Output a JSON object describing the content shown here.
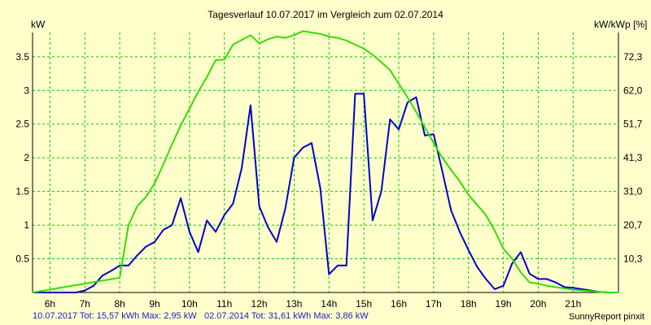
{
  "chart_data": {
    "type": "line",
    "title": "Tagesverlauf 10.07.2017 im Vergleich zum 02.07.2014",
    "ylabel_left": "kW",
    "ylabel_right": "kW/kWp [%]",
    "x_ticks": [
      "6h",
      "7h",
      "8h",
      "9h",
      "10h",
      "11h",
      "12h",
      "13h",
      "14h",
      "15h",
      "16h",
      "17h",
      "18h",
      "19h",
      "20h",
      "21h"
    ],
    "x_tick_values": [
      6,
      7,
      8,
      9,
      10,
      11,
      12,
      13,
      14,
      15,
      16,
      17,
      18,
      19,
      20,
      21
    ],
    "xlim": [
      5.5,
      22.3
    ],
    "ylim": [
      0,
      3.86
    ],
    "y_ticks": [
      "0.5",
      "1",
      "1.5",
      "2",
      "2.5",
      "3",
      "3.5"
    ],
    "y_tick_values": [
      0.5,
      1,
      1.5,
      2,
      2.5,
      3,
      3.5
    ],
    "y2_ticks": [
      "10,3",
      "20,7",
      "31,0",
      "41,3",
      "51,7",
      "62,0",
      "72,3"
    ],
    "grid": true,
    "series": [
      {
        "name": "10.07.2017",
        "color": "#0000cc",
        "x": [
          5.5,
          6.75,
          7.0,
          7.25,
          7.5,
          7.75,
          8.0,
          8.25,
          8.5,
          8.75,
          9.0,
          9.25,
          9.5,
          9.75,
          10.0,
          10.25,
          10.5,
          10.75,
          11.0,
          11.25,
          11.5,
          11.75,
          12.0,
          12.25,
          12.5,
          12.75,
          13.0,
          13.25,
          13.5,
          13.75,
          14.0,
          14.25,
          14.5,
          14.75,
          15.0,
          15.25,
          15.5,
          15.75,
          16.0,
          16.25,
          16.5,
          16.75,
          17.0,
          17.25,
          17.5,
          17.75,
          18.0,
          18.25,
          18.5,
          18.75,
          19.0,
          19.25,
          19.5,
          19.75,
          20.0,
          20.25,
          20.5,
          20.75,
          21.0,
          21.25,
          21.5,
          21.75,
          22.0,
          22.3
        ],
        "y": [
          0,
          0,
          0.03,
          0.1,
          0.25,
          0.32,
          0.4,
          0.4,
          0.55,
          0.68,
          0.75,
          0.93,
          1.0,
          1.4,
          0.9,
          0.6,
          1.07,
          0.9,
          1.15,
          1.32,
          1.85,
          2.78,
          1.28,
          0.97,
          0.75,
          1.25,
          2.0,
          2.15,
          2.22,
          1.55,
          0.27,
          0.4,
          0.4,
          2.95,
          2.95,
          1.07,
          1.5,
          2.57,
          2.42,
          2.82,
          2.9,
          2.33,
          2.35,
          1.8,
          1.22,
          0.9,
          0.63,
          0.38,
          0.2,
          0.05,
          0.1,
          0.43,
          0.6,
          0.28,
          0.2,
          0.2,
          0.15,
          0.08,
          0.07,
          0.05,
          0.03,
          0.01,
          0,
          0
        ]
      },
      {
        "name": "02.07.2014",
        "color": "#33dd00",
        "x": [
          5.5,
          8.0,
          8.25,
          8.5,
          8.75,
          9.0,
          9.25,
          9.5,
          9.75,
          10.0,
          10.25,
          10.5,
          10.75,
          11.0,
          11.25,
          11.5,
          11.75,
          12.0,
          12.25,
          12.5,
          12.75,
          13.0,
          13.25,
          13.5,
          13.75,
          14.0,
          14.25,
          14.5,
          14.75,
          15.0,
          15.25,
          15.5,
          15.75,
          16.0,
          16.25,
          16.5,
          16.75,
          17.0,
          17.25,
          17.5,
          17.75,
          18.0,
          18.25,
          18.5,
          18.75,
          19.0,
          19.25,
          19.5,
          19.75,
          20.0,
          20.25,
          20.5,
          20.75,
          21.0,
          21.25,
          21.5,
          21.75,
          22.0,
          22.3
        ],
        "y": [
          0,
          0.22,
          1.0,
          1.28,
          1.42,
          1.62,
          1.9,
          2.2,
          2.48,
          2.73,
          2.98,
          3.2,
          3.45,
          3.46,
          3.68,
          3.75,
          3.82,
          3.7,
          3.76,
          3.8,
          3.78,
          3.82,
          3.88,
          3.86,
          3.84,
          3.8,
          3.78,
          3.74,
          3.68,
          3.62,
          3.53,
          3.42,
          3.3,
          3.1,
          2.9,
          2.68,
          2.45,
          2.22,
          2.0,
          1.82,
          1.65,
          1.45,
          1.3,
          1.15,
          0.92,
          0.65,
          0.5,
          0.3,
          0.15,
          0.13,
          0.1,
          0.08,
          0.06,
          0.04,
          0.03,
          0.02,
          0.01,
          0,
          0
        ]
      }
    ]
  },
  "footer": {
    "left": "10.07.2017 Tot: 15,57 kWh Max: 2,95 kW",
    "middle": "02.07.2014 Tot: 31,61 kWh Max: 3,86 kW",
    "right": "SunnyReport pinxit"
  },
  "colors": {
    "background": "#ffffcc",
    "grid": "#00cc00",
    "axis": "#000000"
  }
}
